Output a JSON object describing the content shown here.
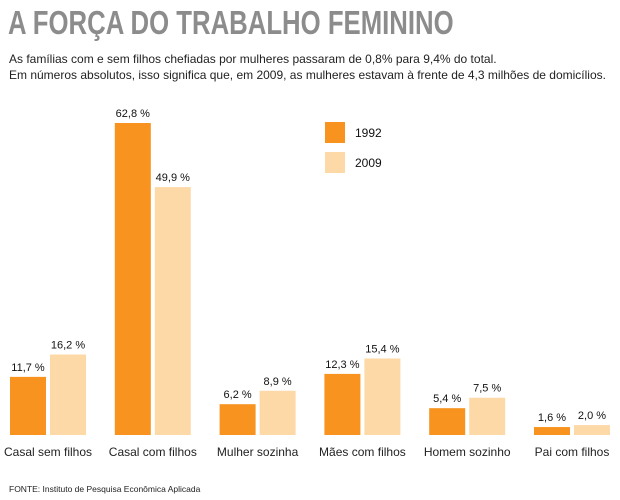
{
  "title": "A FORÇA DO TRABALHO FEMININO",
  "subtitle_lines": [
    "As famílias com e sem filhos chefiadas por mulheres passaram de 0,8% para 9,4% do total.",
    "Em números absolutos, isso significa que, em 2009, as mulheres estavam à frente de 4,3 milhões de domicílios."
  ],
  "source": "FONTE: Instituto de Pesquisa Econômica Aplicada",
  "chart_data": {
    "type": "bar",
    "title": "A FORÇA DO TRABALHO FEMININO",
    "xlabel": "",
    "ylabel": "",
    "ylim": [
      0,
      62.8
    ],
    "grid": false,
    "legend_position": "top-center",
    "categories": [
      "Casal sem filhos",
      "Casal com filhos",
      "Mulher sozinha",
      "Mães com filhos",
      "Homem sozinho",
      "Pai com filhos"
    ],
    "series": [
      {
        "name": "1992",
        "color": "#F7931E",
        "values": [
          11.7,
          62.8,
          6.2,
          12.3,
          5.4,
          1.6
        ],
        "labels": [
          "11,7 %",
          "62,8 %",
          "6,2 %",
          "12,3 %",
          "5,4 %",
          "1,6 %"
        ]
      },
      {
        "name": "2009",
        "color": "#FDD9A8",
        "values": [
          16.2,
          49.9,
          8.9,
          15.4,
          7.5,
          2.0
        ],
        "labels": [
          "16,2 %",
          "49,9 %",
          "8,9 %",
          "15,4 %",
          "7,5 %",
          "2,0 %"
        ]
      }
    ]
  }
}
